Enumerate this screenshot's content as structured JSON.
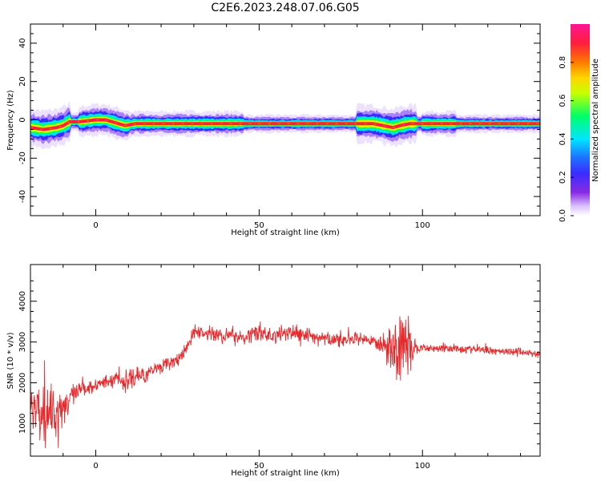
{
  "title": "C2E6.2023.248.07.06.G05",
  "colors": {
    "snr_line": "#e8292c",
    "axes": "#000000",
    "colormap": [
      "#ffffff",
      "#d8c0ff",
      "#8a2be2",
      "#3a2cff",
      "#1f6fff",
      "#00e5ff",
      "#00ff66",
      "#c8ff00",
      "#ffd400",
      "#ff7a00",
      "#ff1e3c",
      "#ff1493"
    ]
  },
  "chart_data": [
    {
      "type": "heatmap",
      "xlabel": "Height of straight line (km)",
      "ylabel": "Frequency (Hz)",
      "xlim": [
        -20,
        136
      ],
      "ylim": [
        -50,
        50
      ],
      "xticks": [
        0,
        50,
        100
      ],
      "yticks": [
        40,
        20,
        0,
        -20,
        -40
      ],
      "colorbar": {
        "label": "Normalized spectral amplitude",
        "range": [
          0,
          1
        ],
        "ticks": [
          "0.0",
          "0.2",
          "0.4",
          "0.6",
          "0.8"
        ]
      },
      "peak_frequency_trace": {
        "x": [
          -20,
          -16,
          -12,
          -10,
          -8,
          -5,
          0,
          3,
          5,
          7,
          9,
          12,
          20,
          40,
          60,
          80,
          85,
          88,
          91,
          93,
          96,
          100,
          110,
          120,
          130,
          135
        ],
        "freq": [
          -4,
          -5,
          -4,
          -3,
          -1,
          -1,
          0,
          0,
          -1,
          -2,
          -3,
          -2,
          -2,
          -2,
          -2,
          -2,
          -2,
          -3,
          -4,
          -3,
          -2,
          -2,
          -2,
          -2,
          -2,
          -2
        ]
      },
      "spread_regions": [
        {
          "x": [
            -20,
            -8
          ],
          "width": 3
        },
        {
          "x": [
            -5,
            10
          ],
          "width": 2.5
        },
        {
          "x": [
            10,
            45
          ],
          "width": 2
        },
        {
          "x": [
            80,
            98
          ],
          "width": 3
        },
        {
          "x": [
            100,
            110
          ],
          "width": 2
        }
      ]
    },
    {
      "type": "line",
      "xlabel": "Height of straight line (km)",
      "ylabel": "SNR (10 * v/v)",
      "xlim": [
        -20,
        136
      ],
      "ylim": [
        200,
        4900
      ],
      "xticks": [
        0,
        50,
        100
      ],
      "yticks": [
        1000,
        2000,
        3000,
        4000
      ],
      "series": [
        {
          "x": [
            -20,
            -17,
            -14,
            -11,
            -8,
            -5,
            -2,
            0,
            3,
            6,
            9,
            12,
            15,
            18,
            21,
            24,
            27,
            30,
            35,
            40,
            45,
            50,
            55,
            60,
            65,
            70,
            75,
            80,
            85,
            88,
            91,
            92,
            94,
            96,
            98,
            100,
            110,
            120,
            130,
            136
          ],
          "y": [
            1500,
            1300,
            1200,
            1350,
            1600,
            1800,
            1900,
            1950,
            2000,
            2150,
            2000,
            2150,
            2200,
            2350,
            2450,
            2500,
            2700,
            3250,
            3200,
            3150,
            3150,
            3200,
            3150,
            3250,
            3150,
            3100,
            3050,
            3050,
            3000,
            2950,
            2900,
            2800,
            2900,
            2800,
            2850,
            2850,
            2850,
            2800,
            2750,
            2700
          ],
          "noise": [
            900,
            1000,
            1000,
            900,
            500,
            300,
            250,
            250,
            250,
            300,
            400,
            350,
            300,
            250,
            250,
            250,
            250,
            250,
            250,
            300,
            300,
            350,
            300,
            300,
            300,
            250,
            250,
            250,
            250,
            400,
            900,
            1600,
            900,
            1400,
            200,
            150,
            150,
            150,
            150,
            150
          ]
        }
      ]
    }
  ]
}
